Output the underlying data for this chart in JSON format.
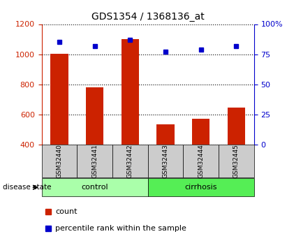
{
  "title": "GDS1354 / 1368136_at",
  "samples": [
    "GSM32440",
    "GSM32441",
    "GSM32442",
    "GSM32443",
    "GSM32444",
    "GSM32445"
  ],
  "counts": [
    1005,
    778,
    1100,
    535,
    570,
    645
  ],
  "percentiles": [
    85,
    82,
    87,
    77,
    79,
    82
  ],
  "ylim_left": [
    400,
    1200
  ],
  "ylim_right": [
    0,
    100
  ],
  "yticks_left": [
    400,
    600,
    800,
    1000,
    1200
  ],
  "yticks_right": [
    0,
    25,
    50,
    75,
    100
  ],
  "bar_color": "#cc2200",
  "point_color": "#0000cc",
  "groups": [
    {
      "label": "control",
      "n": 3,
      "color": "#aaffaa"
    },
    {
      "label": "cirrhosis",
      "n": 3,
      "color": "#55ee55"
    }
  ],
  "group_label_prefix": "disease state",
  "legend_count_label": "count",
  "legend_percentile_label": "percentile rank within the sample",
  "background_color": "#ffffff",
  "grid_color": "black",
  "sample_box_color": "#cccccc"
}
